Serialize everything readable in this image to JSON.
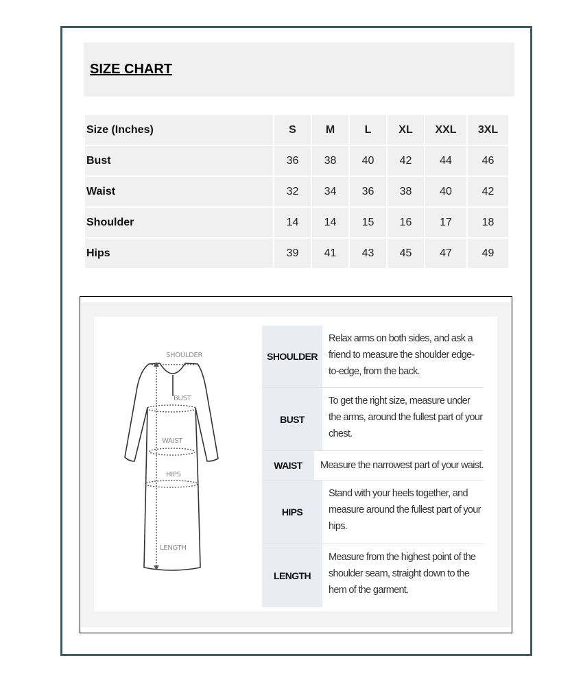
{
  "title": "SIZE CHART",
  "size_table": {
    "header": [
      "Size (Inches)",
      "S",
      "M",
      "L",
      "XL",
      "XXL",
      "3XL"
    ],
    "rows": [
      {
        "label": "Bust",
        "values": [
          "36",
          "38",
          "40",
          "42",
          "44",
          "46"
        ]
      },
      {
        "label": "Waist",
        "values": [
          "32",
          "34",
          "36",
          "38",
          "40",
          "42"
        ]
      },
      {
        "label": "Shoulder",
        "values": [
          "14",
          "14",
          "15",
          "16",
          "17",
          "18"
        ]
      },
      {
        "label": "Hips",
        "values": [
          "39",
          "41",
          "43",
          "45",
          "47",
          "49"
        ]
      }
    ]
  },
  "diagram_labels": {
    "shoulder": "SHOULDER",
    "bust": "BUST",
    "waist": "WAIST",
    "hips": "HIPS",
    "length": "LENGTH"
  },
  "measure_guide": [
    {
      "label": "SHOULDER",
      "text": "Relax arms on both sides, and ask a friend to measure the shoulder edge-to-edge, from the back."
    },
    {
      "label": "BUST",
      "text": "To get the right size, measure under the arms, around the fullest part of your chest."
    },
    {
      "label": "WAIST",
      "text": "Measure the narrowest part of your waist."
    },
    {
      "label": "HIPS",
      "text": "Stand with your heels together, and measure around the fullest part of your hips."
    },
    {
      "label": "LENGTH",
      "text": "Measure from the highest point of the shoulder seam, straight down to the hem of the garment."
    }
  ],
  "colors": {
    "frame": "#3e5a66",
    "cell_bg": "#f0f0f0",
    "guide_label_bg": "#e9ecf2"
  }
}
